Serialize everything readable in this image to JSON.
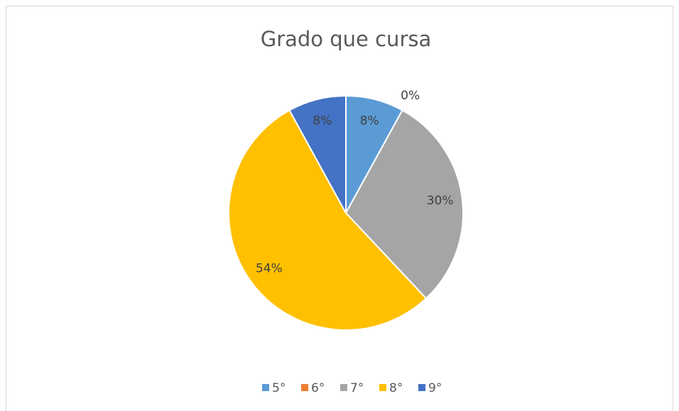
{
  "chart_data": {
    "type": "pie",
    "title": "Grado que cursa",
    "categories": [
      "5°",
      "6°",
      "7°",
      "8°",
      "9°"
    ],
    "values": [
      8,
      0,
      30,
      54,
      8
    ],
    "value_labels": [
      "8%",
      "0%",
      "30%",
      "54%",
      "8%"
    ],
    "colors": [
      "#5b9bd5",
      "#ed7d31",
      "#a5a5a5",
      "#ffc000",
      "#4472c4"
    ],
    "legend": "bottom"
  }
}
